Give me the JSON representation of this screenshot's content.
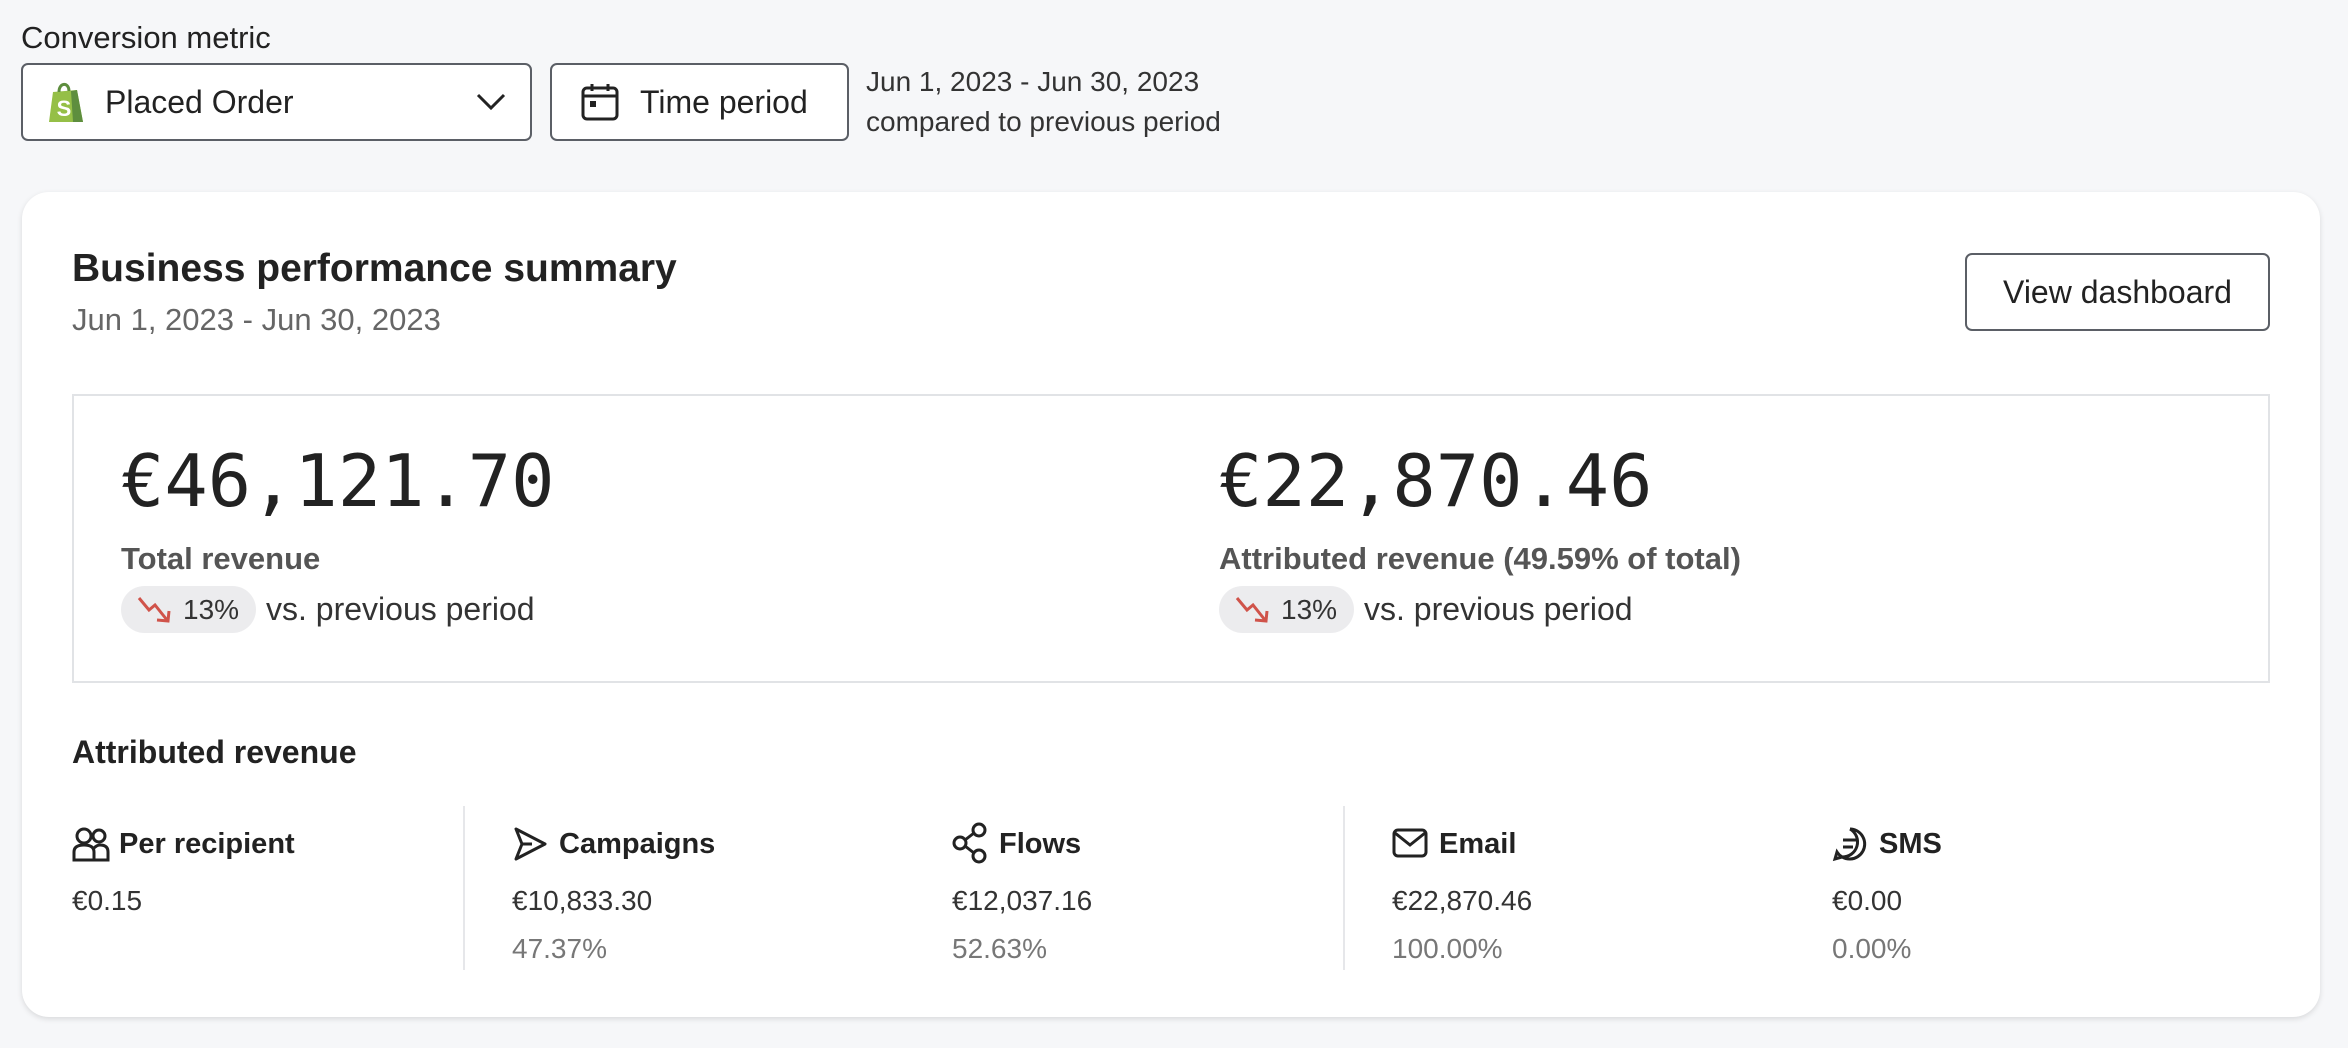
{
  "conversion_metric": {
    "label": "Conversion metric",
    "selected": "Placed Order"
  },
  "time_period": {
    "button": "Time period",
    "range": "Jun 1, 2023 - Jun 30, 2023",
    "comparison": "compared to previous period"
  },
  "summary": {
    "title": "Business performance summary",
    "date_range": "Jun 1, 2023 - Jun 30, 2023",
    "button": "View dashboard",
    "metrics": [
      {
        "value": "€46,121.70",
        "label": "Total revenue",
        "change": "13%",
        "change_note": "vs. previous period"
      },
      {
        "value": "€22,870.46",
        "label": "Attributed revenue (49.59% of total)",
        "change": "13%",
        "change_note": "vs. previous period"
      }
    ]
  },
  "attributed": {
    "title": "Attributed revenue",
    "columns": [
      {
        "label": "Per recipient",
        "value": "€0.15"
      },
      {
        "label": "Campaigns",
        "value": "€10,833.30",
        "share": "47.37%"
      },
      {
        "label": "Flows",
        "value": "€12,037.16",
        "share": "52.63%"
      },
      {
        "label": "Email",
        "value": "€22,870.46",
        "share": "100.00%"
      },
      {
        "label": "SMS",
        "value": "€0.00",
        "share": "0.00%"
      }
    ]
  }
}
